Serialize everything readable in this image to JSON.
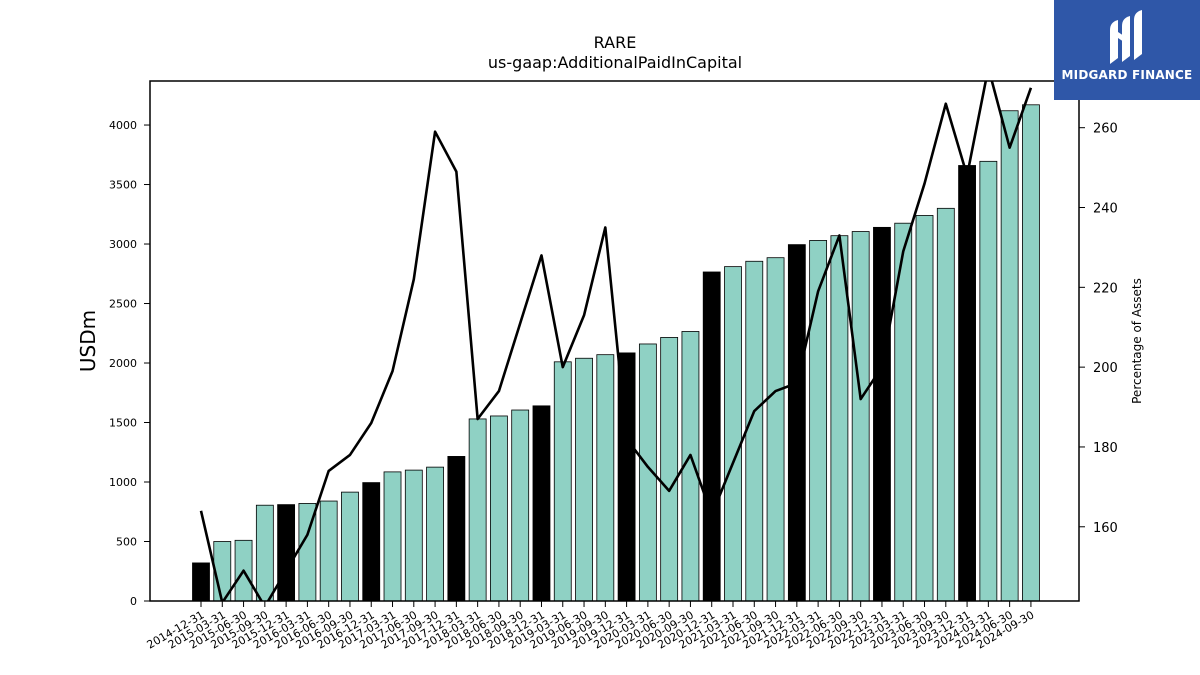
{
  "brand": {
    "name": "MIDGARD FINANCE",
    "bg_color": "#2f57a8"
  },
  "chart_data": {
    "type": "bar",
    "title": "RARE",
    "subtitle": "us-gaap:AdditionalPaidInCapital",
    "ylabel": "USDm",
    "y2label": "Percentage of Assets",
    "ylim": [
      0,
      4370
    ],
    "y2lim": [
      141.4,
      271.7
    ],
    "yticks": [
      0,
      500,
      1000,
      1500,
      2000,
      2500,
      3000,
      3500,
      4000
    ],
    "y2ticks": [
      160,
      180,
      200,
      220,
      240,
      260
    ],
    "bar_color": "#8fd1c4",
    "annual_bar_color": "#000000",
    "line_color": "#000000",
    "categories": [
      "2014-12-31",
      "2015-03-31",
      "2015-06-30",
      "2015-09-30",
      "2015-12-31",
      "2016-03-31",
      "2016-06-30",
      "2016-09-30",
      "2016-12-31",
      "2017-03-31",
      "2017-06-30",
      "2017-09-30",
      "2017-12-31",
      "2018-03-31",
      "2018-06-30",
      "2018-09-30",
      "2018-12-31",
      "2019-03-31",
      "2019-06-30",
      "2019-09-30",
      "2019-12-31",
      "2020-03-31",
      "2020-06-30",
      "2020-09-30",
      "2020-12-31",
      "2021-03-31",
      "2021-06-30",
      "2021-09-30",
      "2021-12-31",
      "2022-03-31",
      "2022-06-30",
      "2022-09-30",
      "2022-12-31",
      "2023-03-31",
      "2023-06-30",
      "2023-09-30",
      "2023-12-31",
      "2024-03-31",
      "2024-06-30",
      "2024-09-30"
    ],
    "series": [
      {
        "values": [
          320,
          500,
          510,
          805,
          810,
          820,
          840,
          915,
          995,
          1085,
          1100,
          1125,
          1215,
          1530,
          1555,
          1605,
          1640,
          2010,
          2040,
          2070,
          2085,
          2160,
          2215,
          2265,
          2765,
          2810,
          2855,
          2885,
          2995,
          3030,
          3070,
          3105,
          3140,
          3175,
          3240,
          3300,
          3660,
          3695,
          4120,
          4170
        ],
        "annual": [
          true,
          false,
          false,
          false,
          true,
          false,
          false,
          false,
          true,
          false,
          false,
          false,
          true,
          false,
          false,
          false,
          true,
          false,
          false,
          false,
          true,
          false,
          false,
          false,
          true,
          false,
          false,
          false,
          true,
          false,
          false,
          false,
          true,
          false,
          false,
          false,
          true,
          false,
          false,
          false
        ]
      },
      {
        "axis": "right",
        "values": [
          164,
          141,
          149,
          140,
          149,
          158,
          174,
          178,
          186,
          199,
          222,
          259,
          249,
          187,
          194,
          211,
          228,
          200,
          213,
          235,
          182,
          175,
          169,
          178,
          163,
          176,
          189,
          194,
          196,
          219,
          233,
          192,
          200,
          229,
          246,
          266,
          248,
          275,
          255,
          270
        ]
      }
    ]
  }
}
